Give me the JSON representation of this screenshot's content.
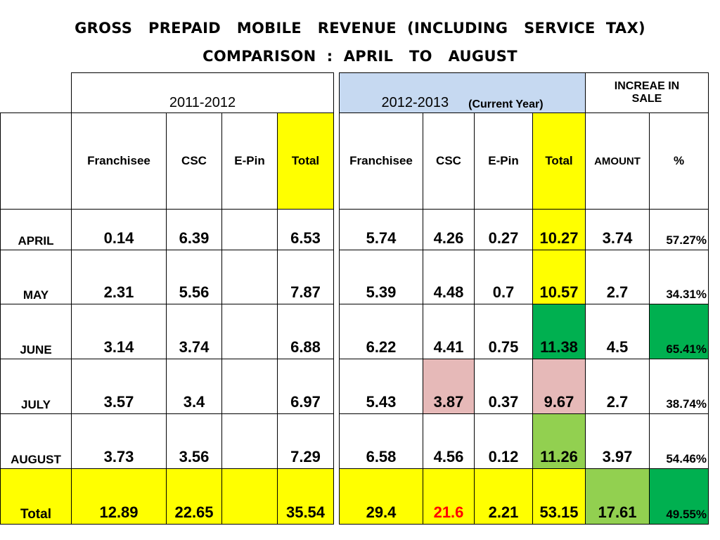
{
  "title_line1": "GROSS   PREPAID   MOBILE   REVENUE  (INCLUDING   SERVICE  TAX)",
  "title_line2": "COMPARISON  :  APRIL   TO   AUGUST",
  "headers": {
    "year_prev": "2011-2012",
    "year_curr": "2012-2013",
    "year_curr_note": "(Current  Year)",
    "increase": "INCREAE  IN SALE",
    "columns": [
      "Franchisee",
      "CSC",
      "E-Pin",
      "Total",
      "Franchisee",
      "CSC",
      "E-Pin",
      "Total",
      "AMOUNT",
      "%"
    ]
  },
  "rows": [
    {
      "month": "APRIL",
      "prev": [
        "0.14",
        "6.39",
        "",
        "6.53"
      ],
      "curr": [
        "5.74",
        "4.26",
        "0.27",
        "10.27"
      ],
      "amount": "3.74",
      "pct": "57.27%"
    },
    {
      "month": "MAY",
      "prev": [
        "2.31",
        "5.56",
        "",
        "7.87"
      ],
      "curr": [
        "5.39",
        "4.48",
        "0.7",
        "10.57"
      ],
      "amount": "2.7",
      "pct": "34.31%"
    },
    {
      "month": "JUNE",
      "prev": [
        "3.14",
        "3.74",
        "",
        "6.88"
      ],
      "curr": [
        "6.22",
        "4.41",
        "0.75",
        "11.38"
      ],
      "amount": "4.5",
      "pct": "65.41%"
    },
    {
      "month": "JULY",
      "prev": [
        "3.57",
        "3.4",
        "",
        "6.97"
      ],
      "curr": [
        "5.43",
        "3.87",
        "0.37",
        "9.67"
      ],
      "amount": "2.7",
      "pct": "38.74%"
    },
    {
      "month": "AUGUST",
      "prev": [
        "3.73",
        "3.56",
        "",
        "7.29"
      ],
      "curr": [
        "6.58",
        "4.56",
        "0.12",
        "11.26"
      ],
      "amount": "3.97",
      "pct": "54.46%"
    }
  ],
  "total": {
    "label": "Total",
    "prev": [
      "12.89",
      "22.65",
      "",
      "35.54"
    ],
    "curr": [
      "29.4",
      "21.6",
      "2.21",
      "53.15"
    ],
    "amount": "17.61",
    "pct": "49.55%"
  },
  "colors": {
    "yellow": "#ffff00",
    "blue_header": "#c6d9f1",
    "dark_green": "#00b050",
    "light_green": "#92d050",
    "pink": "#e6b9b8",
    "red_text": "#ff0000"
  }
}
